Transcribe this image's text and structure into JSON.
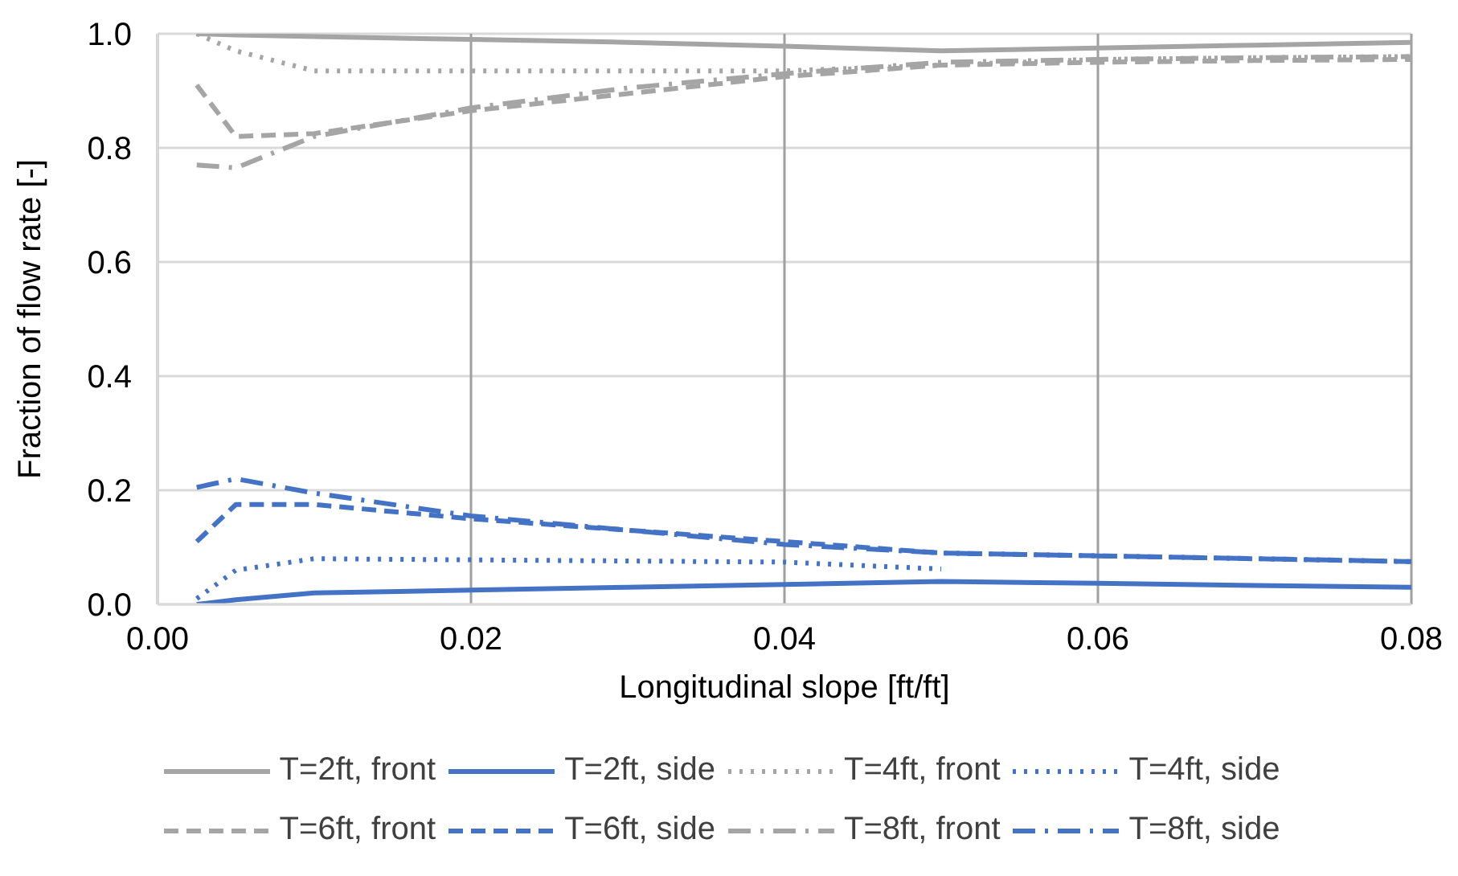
{
  "chart_data": {
    "type": "line",
    "xlabel": "Longitudinal slope [ft/ft]",
    "ylabel": "Fraction of flow rate [-]",
    "x": [
      0.0025,
      0.005,
      0.01,
      0.02,
      0.03,
      0.04,
      0.05,
      0.06,
      0.07,
      0.08
    ],
    "xlim": [
      0,
      0.08
    ],
    "xticks": [
      {
        "value": 0,
        "label": "0.00"
      },
      {
        "value": 0.02,
        "label": "0.02"
      },
      {
        "value": 0.04,
        "label": "0.04"
      },
      {
        "value": 0.06,
        "label": "0.06"
      },
      {
        "value": 0.08,
        "label": "0.08"
      }
    ],
    "ylim": [
      0,
      1
    ],
    "yticks": [
      {
        "value": 0,
        "label": "0.0"
      },
      {
        "value": 0.2,
        "label": "0.2"
      },
      {
        "value": 0.4,
        "label": "0.4"
      },
      {
        "value": 0.6,
        "label": "0.6"
      },
      {
        "value": 0.8,
        "label": "0.8"
      },
      {
        "value": 1,
        "label": "1.0"
      }
    ],
    "grid": true,
    "legend": "bottom",
    "marker": "none",
    "series": [
      {
        "name": "T=2ft, front",
        "color": "#a5a5a5",
        "line_style": "solid",
        "values": [
          1.0,
          0.998,
          0.995,
          0.99,
          0.985,
          0.978,
          0.97,
          0.975,
          0.98,
          0.985
        ]
      },
      {
        "name": "T=2ft, side",
        "color": "#4472c4",
        "line_style": "solid",
        "values": [
          0.0,
          0.008,
          0.02,
          0.025,
          0.03,
          0.035,
          0.04,
          0.037,
          0.033,
          0.03
        ]
      },
      {
        "name": "T=4ft, front",
        "color": "#a5a5a5",
        "line_style": "dotted",
        "values": [
          1.0,
          0.97,
          0.935,
          0.935,
          0.935,
          0.935,
          0.945,
          0.955,
          0.958,
          0.96
        ]
      },
      {
        "name": "T=4ft, side",
        "color": "#4472c4",
        "line_style": "dotted",
        "values": [
          0.01,
          0.06,
          0.08,
          0.078,
          0.076,
          0.074,
          0.062,
          null,
          null,
          null
        ]
      },
      {
        "name": "T=6ft, front",
        "color": "#a5a5a5",
        "line_style": "dashed",
        "values": [
          0.91,
          0.82,
          0.825,
          0.865,
          0.895,
          0.925,
          0.945,
          0.95,
          0.953,
          0.955
        ]
      },
      {
        "name": "T=6ft, side",
        "color": "#4472c4",
        "line_style": "dashed",
        "values": [
          0.11,
          0.175,
          0.175,
          0.15,
          0.13,
          0.11,
          0.09,
          0.085,
          0.08,
          0.075
        ]
      },
      {
        "name": "T=8ft, front",
        "color": "#a5a5a5",
        "line_style": "dashdot",
        "values": [
          0.77,
          0.765,
          0.82,
          0.87,
          0.905,
          0.93,
          0.95,
          0.955,
          0.958,
          0.96
        ]
      },
      {
        "name": "T=8ft, side",
        "color": "#4472c4",
        "line_style": "dashdot",
        "values": [
          0.205,
          0.22,
          0.195,
          0.155,
          0.13,
          0.105,
          0.09,
          0.085,
          0.08,
          0.075
        ]
      }
    ]
  }
}
